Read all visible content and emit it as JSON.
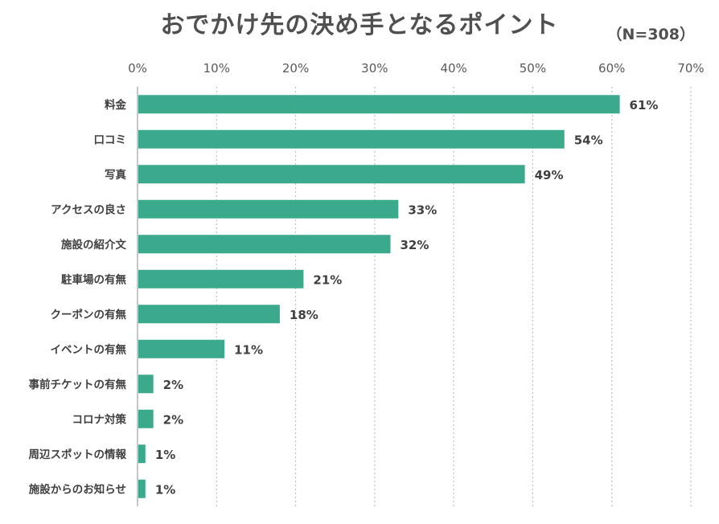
{
  "chart_data": {
    "type": "bar",
    "orientation": "horizontal",
    "title": "おでかけ先の決め手となるポイント",
    "subtitle": "（N=308）",
    "categories": [
      "料金",
      "口コミ",
      "写真",
      "アクセスの良さ",
      "施設の紹介文",
      "駐車場の有無",
      "クーポンの有無",
      "イベントの有無",
      "事前チケットの有無",
      "コロナ対策",
      "周辺スポットの情報",
      "施設からのお知らせ"
    ],
    "values": [
      61,
      54,
      49,
      33,
      32,
      21,
      18,
      11,
      2,
      2,
      1,
      1
    ],
    "value_labels": [
      "61%",
      "54%",
      "49%",
      "33%",
      "32%",
      "21%",
      "18%",
      "11%",
      "2%",
      "2%",
      "1%",
      "1%"
    ],
    "xticks": [
      "0%",
      "10%",
      "20%",
      "30%",
      "40%",
      "50%",
      "60%",
      "70%"
    ],
    "xlim": [
      0,
      70
    ],
    "xlabel": "",
    "ylabel": "",
    "grid": "vertical-dotted",
    "legend": "none",
    "bar_color": "#3BAA8C",
    "axis_color": "#A6A6A6",
    "grid_color": "#BFBFBF"
  }
}
